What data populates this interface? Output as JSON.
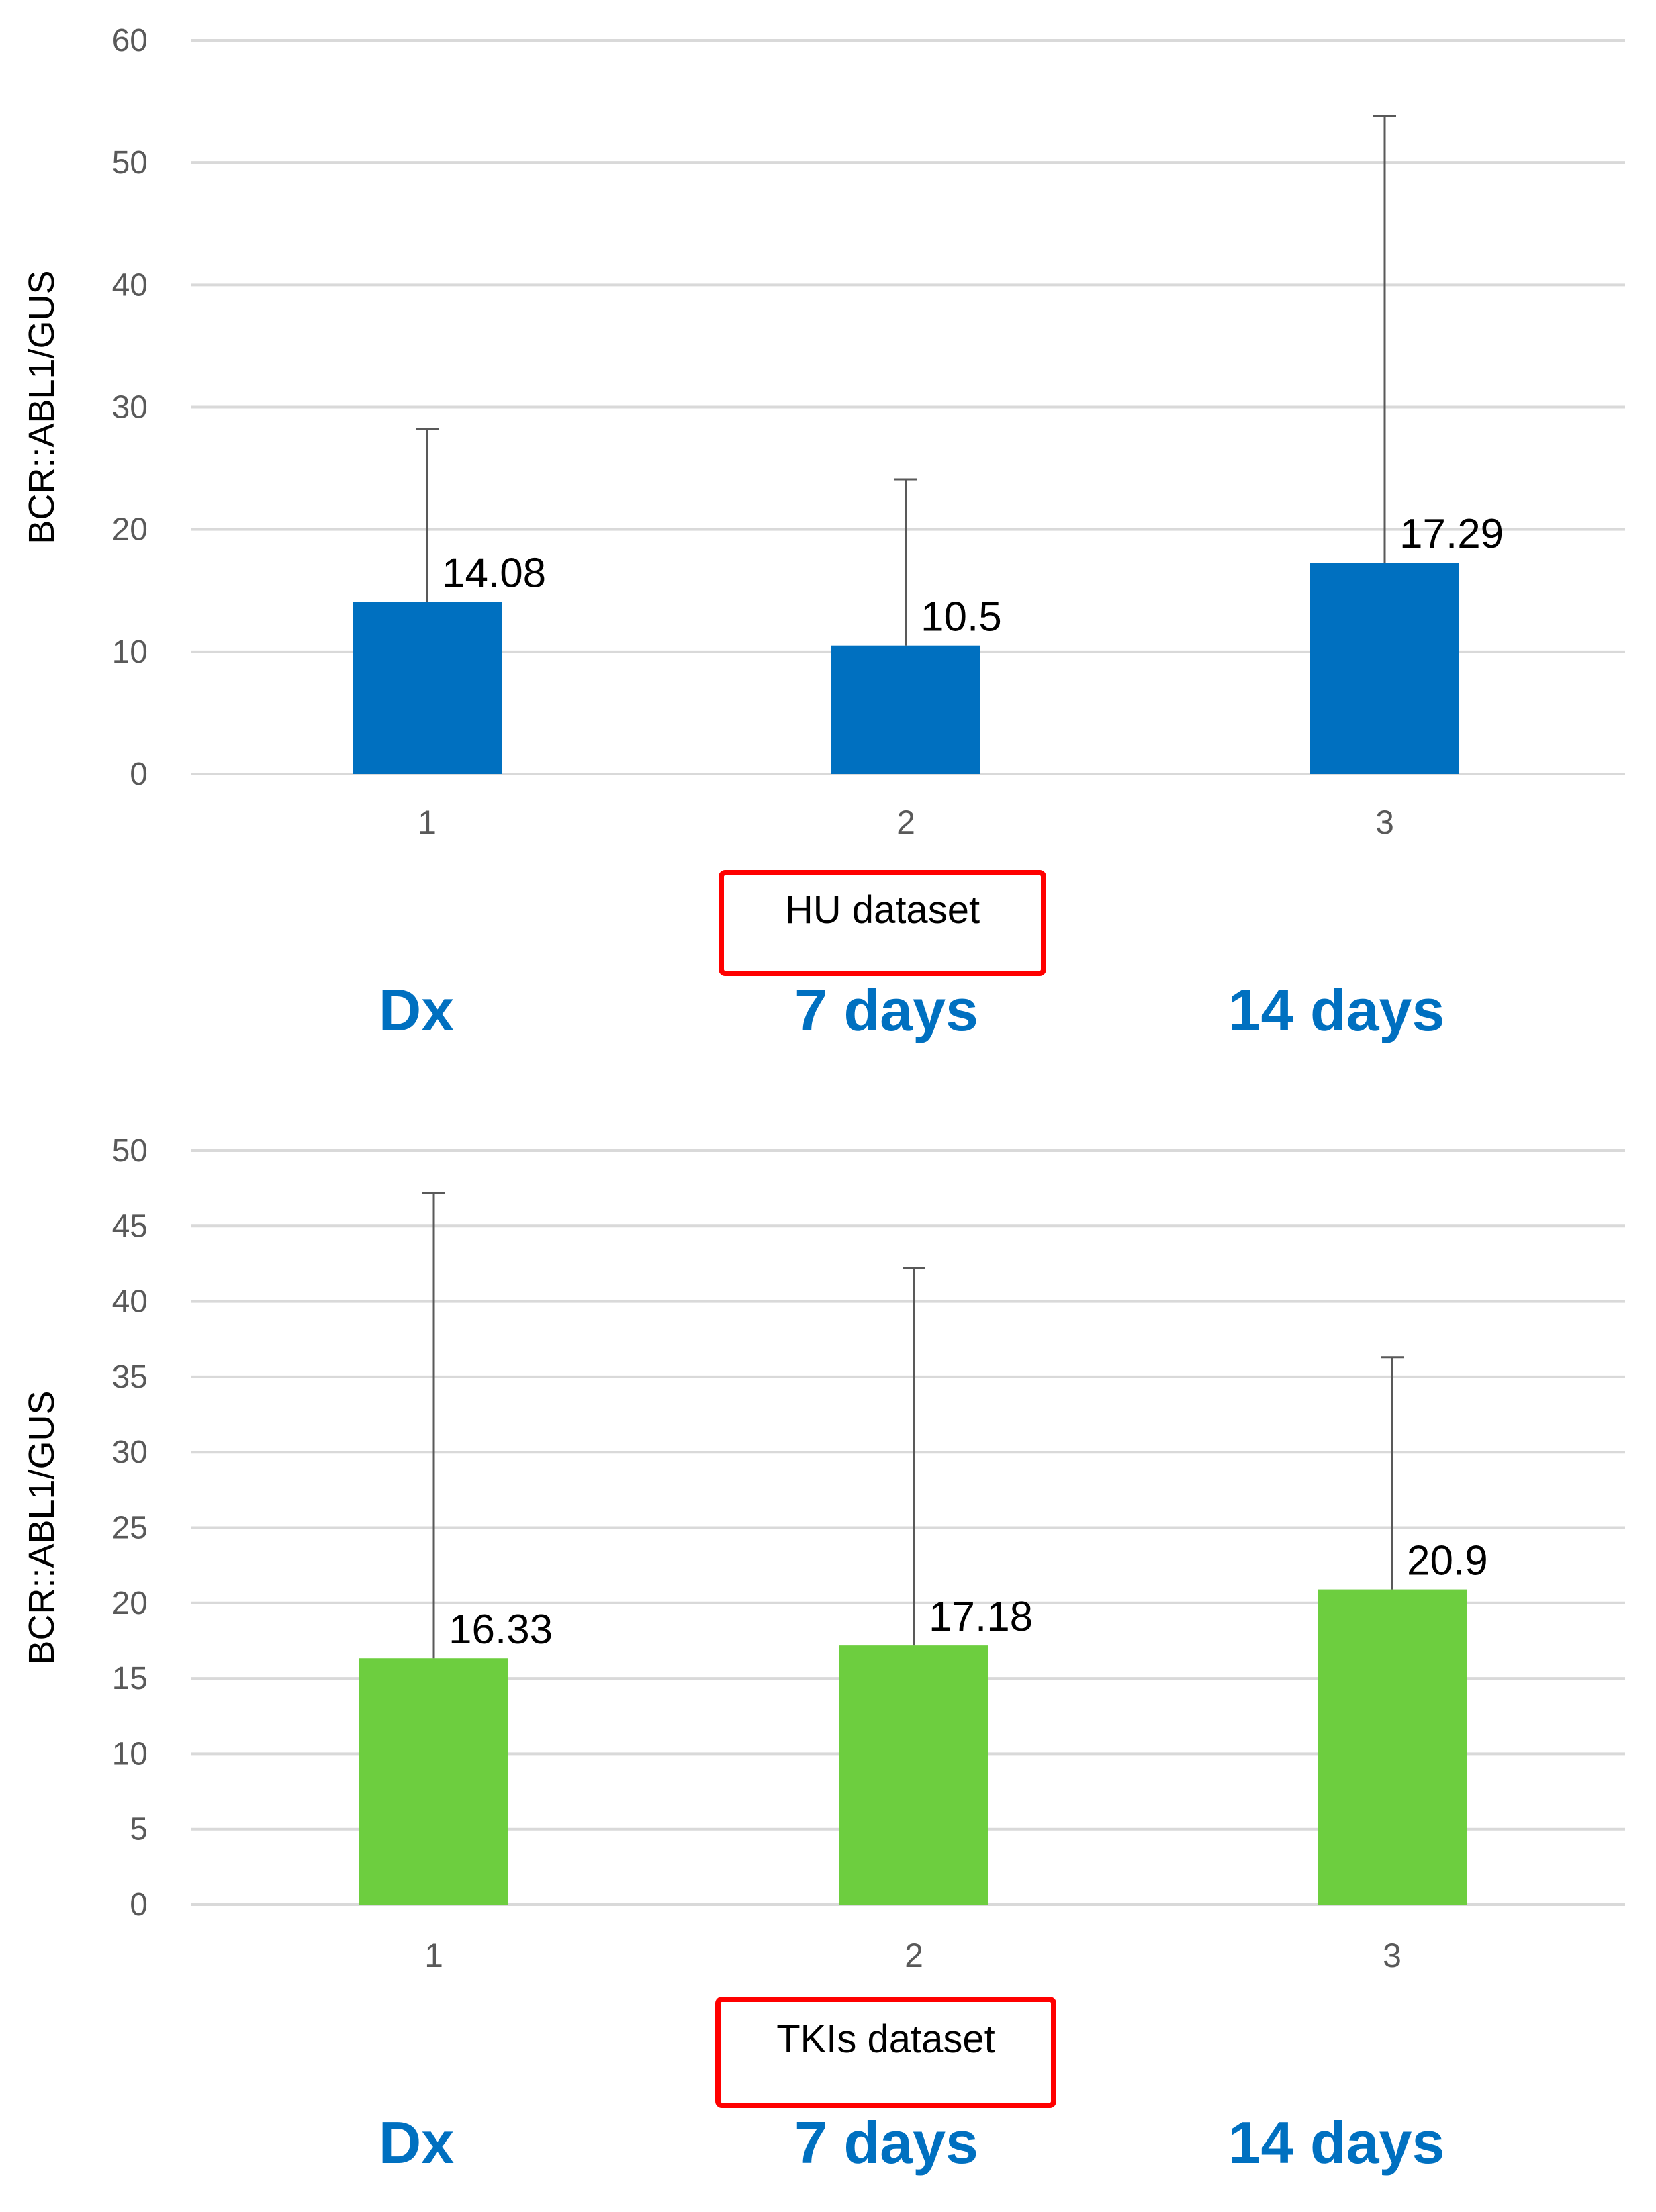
{
  "colors": {
    "hu_bar": "#0070c0",
    "tki_bar": "#6dce3f",
    "timepoint_text": "#0070c0",
    "label_box_border": "#ff0000",
    "gridline": "#d9d9d9",
    "error_bar": "#595959",
    "axis_text": "#595959"
  },
  "chart_data": [
    {
      "type": "bar",
      "ylabel": "BCR::ABL1/GUS",
      "ylim": [
        0,
        60
      ],
      "yticks": [
        0,
        10,
        20,
        30,
        40,
        50,
        60
      ],
      "grid": true,
      "categories": [
        "1",
        "2",
        "3"
      ],
      "values": [
        14.08,
        10.5,
        17.29
      ],
      "data_labels": [
        "14.08",
        "10.5",
        "17.29"
      ],
      "error_upper": [
        28.2,
        24.1,
        53.8
      ],
      "dataset_label": "HU dataset",
      "timepoints": [
        "Dx",
        "7 days",
        "14 days"
      ]
    },
    {
      "type": "bar",
      "ylabel": "BCR::ABL1/GUS",
      "ylim": [
        0,
        50
      ],
      "yticks": [
        0,
        5,
        10,
        15,
        20,
        25,
        30,
        35,
        40,
        45,
        50
      ],
      "grid": true,
      "categories": [
        "1",
        "2",
        "3"
      ],
      "values": [
        16.33,
        17.18,
        20.9
      ],
      "data_labels": [
        "16.33",
        "17.18",
        "20.9"
      ],
      "error_upper": [
        47.2,
        42.2,
        36.3
      ],
      "dataset_label": "TKIs dataset",
      "timepoints": [
        "Dx",
        "7 days",
        "14 days"
      ]
    }
  ]
}
